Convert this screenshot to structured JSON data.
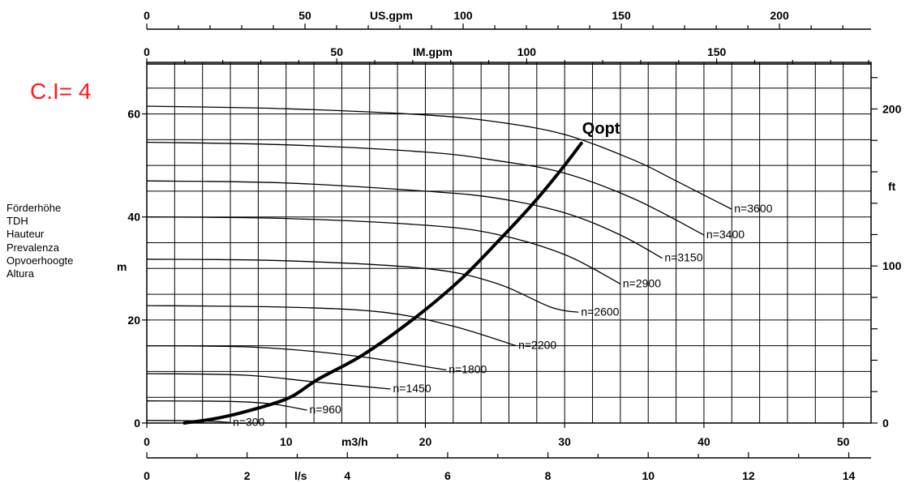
{
  "annotation": "C.I= 4",
  "head_labels": [
    "Förderhöhe",
    "TDH",
    "Hauteur",
    "Prevalenza",
    "Opvoerhoogte",
    "Altura"
  ],
  "chart_data": {
    "type": "line",
    "axes": {
      "x_m3h": {
        "label": "m3/h",
        "range": [
          0,
          52
        ],
        "ticks": [
          0,
          10,
          20,
          30,
          40,
          50
        ]
      },
      "x_ls": {
        "label": "l/s",
        "range": [
          0,
          14.44
        ],
        "ticks": [
          0,
          2,
          4,
          6,
          8,
          10,
          12,
          14
        ]
      },
      "x_usgpm": {
        "label": "US.gpm",
        "range": [
          0,
          229
        ],
        "ticks": [
          0,
          50,
          100,
          150,
          200
        ]
      },
      "x_imgpm": {
        "label": "IM.gpm",
        "range": [
          0,
          190.5
        ],
        "ticks": [
          0,
          50,
          100,
          150
        ]
      },
      "y_m": {
        "label": "m",
        "range": [
          0,
          70
        ],
        "ticks": [
          0,
          20,
          40,
          60
        ]
      },
      "y_ft": {
        "label": "ft",
        "range": [
          0,
          229.7
        ],
        "ticks": [
          0,
          100,
          200
        ]
      }
    },
    "grid": true,
    "series": [
      {
        "name": "n=3600",
        "points": [
          [
            0,
            61.5
          ],
          [
            10,
            61.0
          ],
          [
            20,
            59.8
          ],
          [
            25,
            58.5
          ],
          [
            30,
            56.0
          ],
          [
            35,
            51.0
          ],
          [
            38,
            47.0
          ],
          [
            42,
            41.5
          ]
        ]
      },
      {
        "name": "n=3400",
        "points": [
          [
            0,
            54.5
          ],
          [
            10,
            54.0
          ],
          [
            20,
            52.6
          ],
          [
            25,
            51.0
          ],
          [
            30,
            48.5
          ],
          [
            35,
            43.5
          ],
          [
            40,
            36.5
          ]
        ]
      },
      {
        "name": "n=3150",
        "points": [
          [
            0,
            47.0
          ],
          [
            10,
            46.6
          ],
          [
            20,
            45.0
          ],
          [
            25,
            43.7
          ],
          [
            30,
            40.8
          ],
          [
            34,
            36.5
          ],
          [
            37,
            32.0
          ]
        ]
      },
      {
        "name": "n=2900",
        "points": [
          [
            0,
            40.0
          ],
          [
            10,
            39.7
          ],
          [
            20,
            38.4
          ],
          [
            25,
            36.7
          ],
          [
            30,
            32.7
          ],
          [
            34,
            27.0
          ]
        ]
      },
      {
        "name": "n=2600",
        "points": [
          [
            0,
            31.8
          ],
          [
            10,
            31.5
          ],
          [
            20,
            30.0
          ],
          [
            25,
            27.2
          ],
          [
            29,
            22.5
          ],
          [
            31,
            21.5
          ]
        ]
      },
      {
        "name": "n=2200",
        "points": [
          [
            0,
            22.8
          ],
          [
            10,
            22.5
          ],
          [
            17,
            21.5
          ],
          [
            22,
            18.8
          ],
          [
            26.5,
            15.0
          ]
        ]
      },
      {
        "name": "n=1800",
        "points": [
          [
            0,
            15.0
          ],
          [
            8,
            14.7
          ],
          [
            15,
            13.0
          ],
          [
            21.5,
            10.3
          ]
        ]
      },
      {
        "name": "n=1450",
        "points": [
          [
            0,
            9.6
          ],
          [
            7,
            9.3
          ],
          [
            12,
            8.0
          ],
          [
            17.5,
            6.6
          ]
        ]
      },
      {
        "name": "n=960",
        "points": [
          [
            0,
            4.3
          ],
          [
            6,
            4.2
          ],
          [
            9,
            3.7
          ],
          [
            11.5,
            2.5
          ]
        ]
      },
      {
        "name": "n=300",
        "points": [
          [
            0,
            0.5
          ],
          [
            3,
            0.45
          ],
          [
            5,
            0.3
          ],
          [
            6,
            0.1
          ]
        ]
      }
    ],
    "qopt": {
      "name": "Qopt",
      "points": [
        [
          2.7,
          0
        ],
        [
          5.2,
          1.0
        ],
        [
          8,
          2.9
        ],
        [
          10.3,
          5.0
        ],
        [
          12.3,
          8.5
        ],
        [
          15.5,
          13.2
        ],
        [
          19.2,
          20.3
        ],
        [
          22.5,
          27.8
        ],
        [
          25.3,
          35.5
        ],
        [
          27.7,
          42.5
        ],
        [
          29.7,
          49.0
        ],
        [
          31.2,
          54.3
        ]
      ]
    }
  }
}
